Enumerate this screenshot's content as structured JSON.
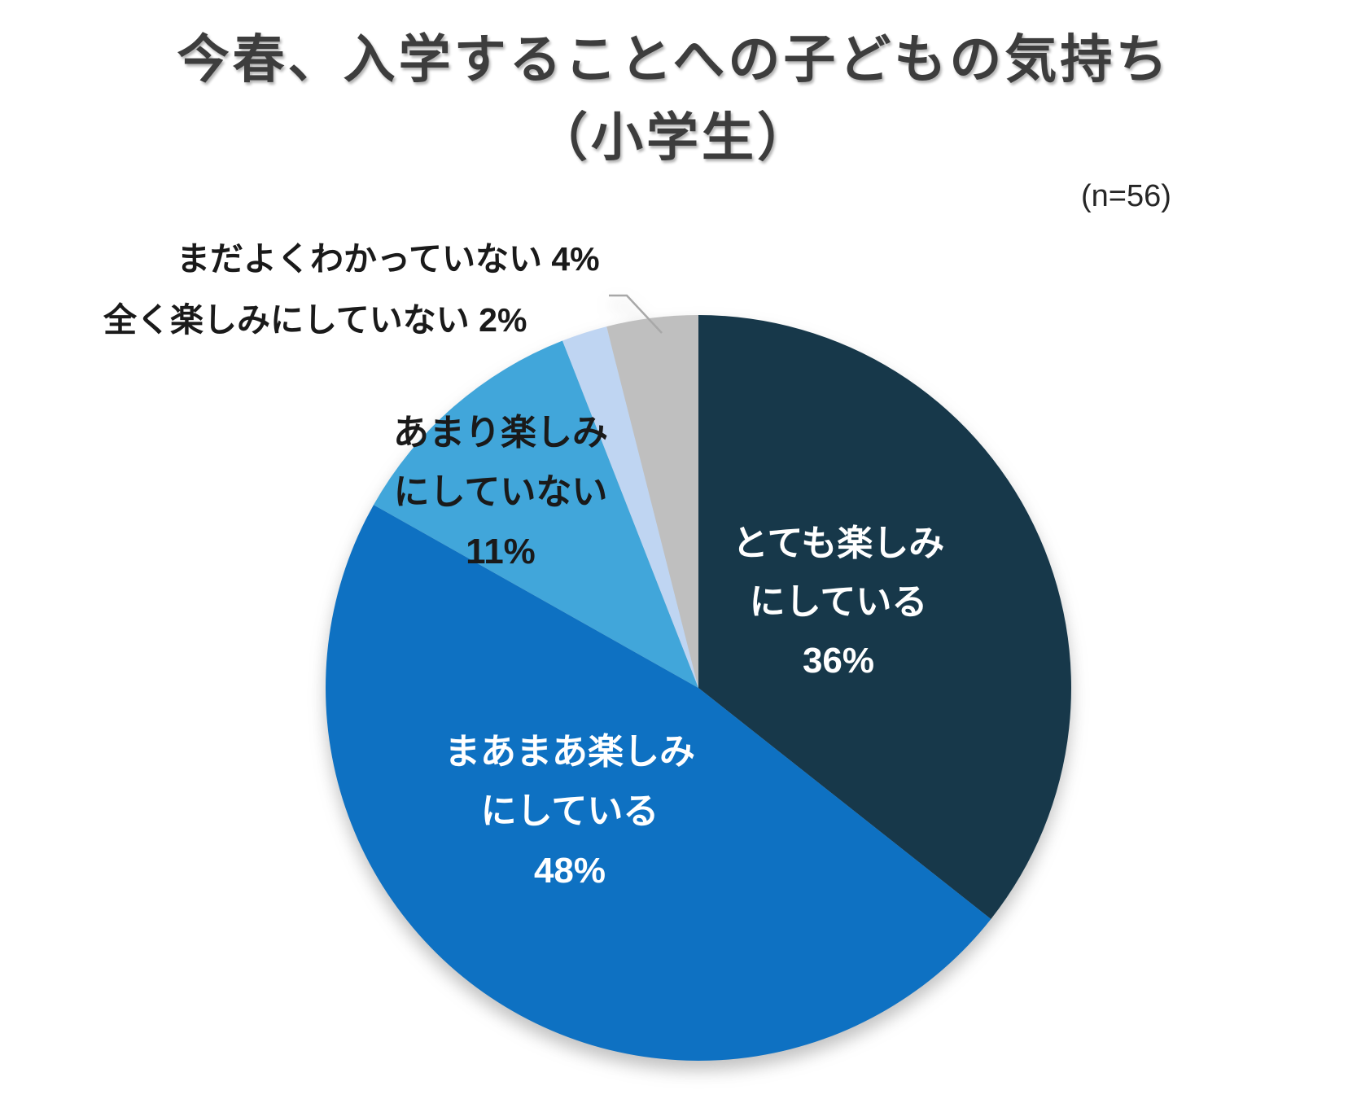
{
  "title": {
    "line1": "今春、入学することへの子どもの気持ち",
    "line2": "（小学生）",
    "color": "#3d3d3d"
  },
  "sample_size_label": "(n=56)",
  "chart_data": {
    "type": "pie",
    "title": "今春、入学することへの子どもの気持ち（小学生）",
    "sample_size_text": "(n=56)",
    "start_angle_deg": 0,
    "direction": "clockwise",
    "legend_position": "none",
    "categories": [
      "とても楽しみにしている",
      "まあまあ楽しみにしている",
      "あまり楽しみにしていない",
      "全く楽しみにしていない",
      "まだよくわかっていない"
    ],
    "values_percent": [
      36,
      48,
      11,
      2,
      4
    ],
    "colors": [
      "#17384a",
      "#0e71c2",
      "#41a6da",
      "#bfd5f2",
      "#bfbfbf"
    ],
    "slices": [
      {
        "label": "とても楽しみにしている",
        "percent": 36,
        "color": "#17384a",
        "label_placement": "inside",
        "label_color": "#ffffff",
        "label_lines": [
          "とても楽しみ",
          "にしている",
          "36%"
        ]
      },
      {
        "label": "まあまあ楽しみにしている",
        "percent": 48,
        "color": "#0e71c2",
        "label_placement": "inside",
        "label_color": "#ffffff",
        "label_lines": [
          "まあまあ楽しみ",
          "にしている",
          "48%"
        ]
      },
      {
        "label": "あまり楽しみにしていない",
        "percent": 11,
        "color": "#41a6da",
        "label_placement": "inside",
        "label_color": "#1a1a1a",
        "label_lines": [
          "あまり楽しみ",
          "にしていない",
          "11%"
        ]
      },
      {
        "label": "全く楽しみにしていない",
        "percent": 2,
        "color": "#bfd5f2",
        "label_placement": "outside",
        "label_color": "#1a1a1a",
        "label_lines": [
          "全く楽しみにしていない 2%"
        ]
      },
      {
        "label": "まだよくわかっていない",
        "percent": 4,
        "color": "#bfbfbf",
        "label_placement": "outside",
        "label_color": "#1a1a1a",
        "label_lines": [
          "まだよくわかっていない 4%"
        ],
        "has_leader_line": true
      }
    ],
    "leader_line_color": "#a8a8a8"
  }
}
